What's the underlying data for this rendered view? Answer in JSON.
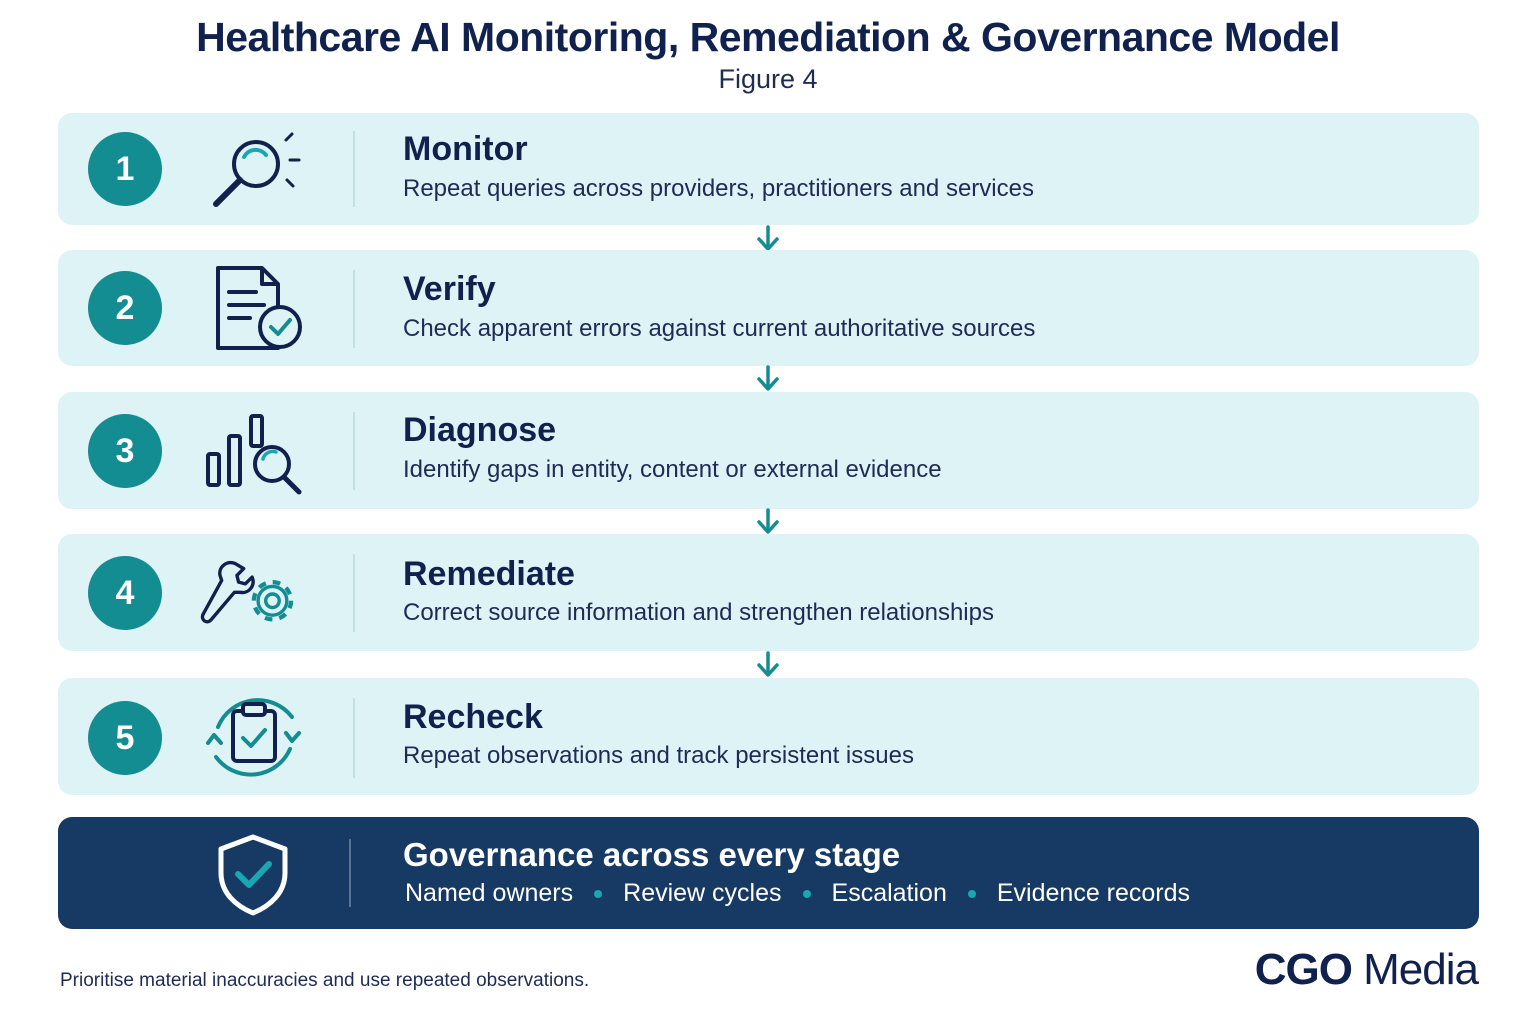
{
  "header": {
    "title": "Healthcare AI Monitoring, Remediation & Governance Model",
    "subtitle": "Figure 4"
  },
  "steps": [
    {
      "number": "1",
      "title": "Monitor",
      "description": "Repeat queries across providers, practitioners and services",
      "icon": "magnifier-icon"
    },
    {
      "number": "2",
      "title": "Verify",
      "description": "Check apparent errors against current authoritative sources",
      "icon": "document-check-icon"
    },
    {
      "number": "3",
      "title": "Diagnose",
      "description": "Identify gaps in entity, content or external evidence",
      "icon": "chart-search-icon"
    },
    {
      "number": "4",
      "title": "Remediate",
      "description": "Correct source information and strengthen relationships",
      "icon": "wrench-gear-icon"
    },
    {
      "number": "5",
      "title": "Recheck",
      "description": "Repeat observations and track persistent issues",
      "icon": "clipboard-cycle-icon"
    }
  ],
  "governance": {
    "title": "Governance across every stage",
    "items": [
      "Named owners",
      "Review cycles",
      "Escalation",
      "Evidence records"
    ],
    "icon": "shield-check-icon"
  },
  "footer": {
    "note": "Prioritise material inaccuracies and use repeated observations.",
    "brand_bold": "CGO",
    "brand_light": " Media"
  },
  "colors": {
    "navy": "#10214e",
    "teal": "#138c92",
    "step_bg": "#ddf3f6",
    "governance_bg": "#163a63"
  }
}
